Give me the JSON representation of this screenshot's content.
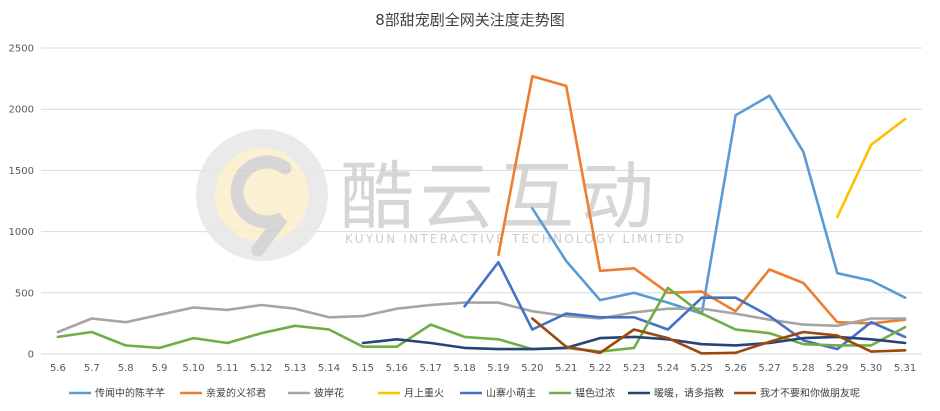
{
  "chart_data": {
    "type": "line",
    "title": "8部甜宠剧全网关注度走势图",
    "categories": [
      "5.6",
      "5.7",
      "5.8",
      "5.9",
      "5.10",
      "5.11",
      "5.12",
      "5.13",
      "5.14",
      "5.15",
      "5.16",
      "5.17",
      "5.18",
      "5.19",
      "5.20",
      "5.21",
      "5.22",
      "5.23",
      "5.24",
      "5.25",
      "5.26",
      "5.27",
      "5.28",
      "5.29",
      "5.30",
      "5.31"
    ],
    "ylim": [
      0,
      2500
    ],
    "yticks": [
      0,
      500,
      1000,
      1500,
      2000,
      2500
    ],
    "grid": true,
    "legend_position": "bottom",
    "series": [
      {
        "name": "传闻中的陈芊芊",
        "color": "#5b9bd5",
        "values": [
          null,
          null,
          null,
          null,
          null,
          null,
          null,
          null,
          null,
          null,
          null,
          null,
          null,
          null,
          1190,
          760,
          440,
          500,
          420,
          330,
          1950,
          2110,
          1650,
          660,
          600,
          460
        ]
      },
      {
        "name": "亲爱的义祁君",
        "color": "#ed7d31",
        "values": [
          null,
          null,
          null,
          null,
          null,
          null,
          null,
          null,
          null,
          null,
          null,
          null,
          null,
          810,
          2270,
          2190,
          680,
          700,
          500,
          510,
          350,
          690,
          580,
          260,
          250,
          280
        ]
      },
      {
        "name": "彼岸花",
        "color": "#a5a5a5",
        "values": [
          180,
          290,
          260,
          320,
          380,
          360,
          400,
          370,
          300,
          310,
          370,
          400,
          420,
          420,
          350,
          310,
          290,
          340,
          370,
          370,
          330,
          280,
          240,
          230,
          290,
          290
        ]
      },
      {
        "name": "月上重火",
        "color": "#ffc000",
        "values": [
          null,
          null,
          null,
          null,
          null,
          null,
          null,
          null,
          null,
          null,
          null,
          null,
          null,
          null,
          null,
          null,
          null,
          null,
          null,
          null,
          null,
          null,
          null,
          1120,
          1710,
          1920
        ]
      },
      {
        "name": "山寨小萌主",
        "color": "#4472c4",
        "values": [
          null,
          null,
          null,
          null,
          null,
          null,
          null,
          null,
          null,
          null,
          null,
          null,
          390,
          750,
          200,
          330,
          300,
          300,
          200,
          460,
          460,
          310,
          110,
          40,
          260,
          140
        ]
      },
      {
        "name": "韫色过浓",
        "color": "#70ad47",
        "values": [
          140,
          180,
          70,
          50,
          130,
          90,
          170,
          230,
          200,
          60,
          60,
          240,
          140,
          120,
          40,
          50,
          20,
          50,
          540,
          330,
          200,
          170,
          80,
          70,
          70,
          220
        ]
      },
      {
        "name": "暖暖，请多指教",
        "color": "#264478",
        "values": [
          null,
          null,
          null,
          null,
          null,
          null,
          null,
          null,
          null,
          90,
          120,
          90,
          50,
          40,
          40,
          50,
          130,
          140,
          120,
          80,
          70,
          90,
          130,
          140,
          120,
          90
        ]
      },
      {
        "name": "我才不要和你做朋友呢",
        "color": "#9e480e",
        "values": [
          null,
          null,
          null,
          null,
          null,
          null,
          null,
          null,
          null,
          null,
          null,
          null,
          null,
          null,
          290,
          60,
          10,
          200,
          130,
          5,
          10,
          100,
          180,
          150,
          20,
          30
        ]
      }
    ]
  },
  "watermark": {
    "brand": "酷云互动",
    "tagline": "KUYUN INTERACTIVE TECHNOLOGY LIMITED"
  }
}
